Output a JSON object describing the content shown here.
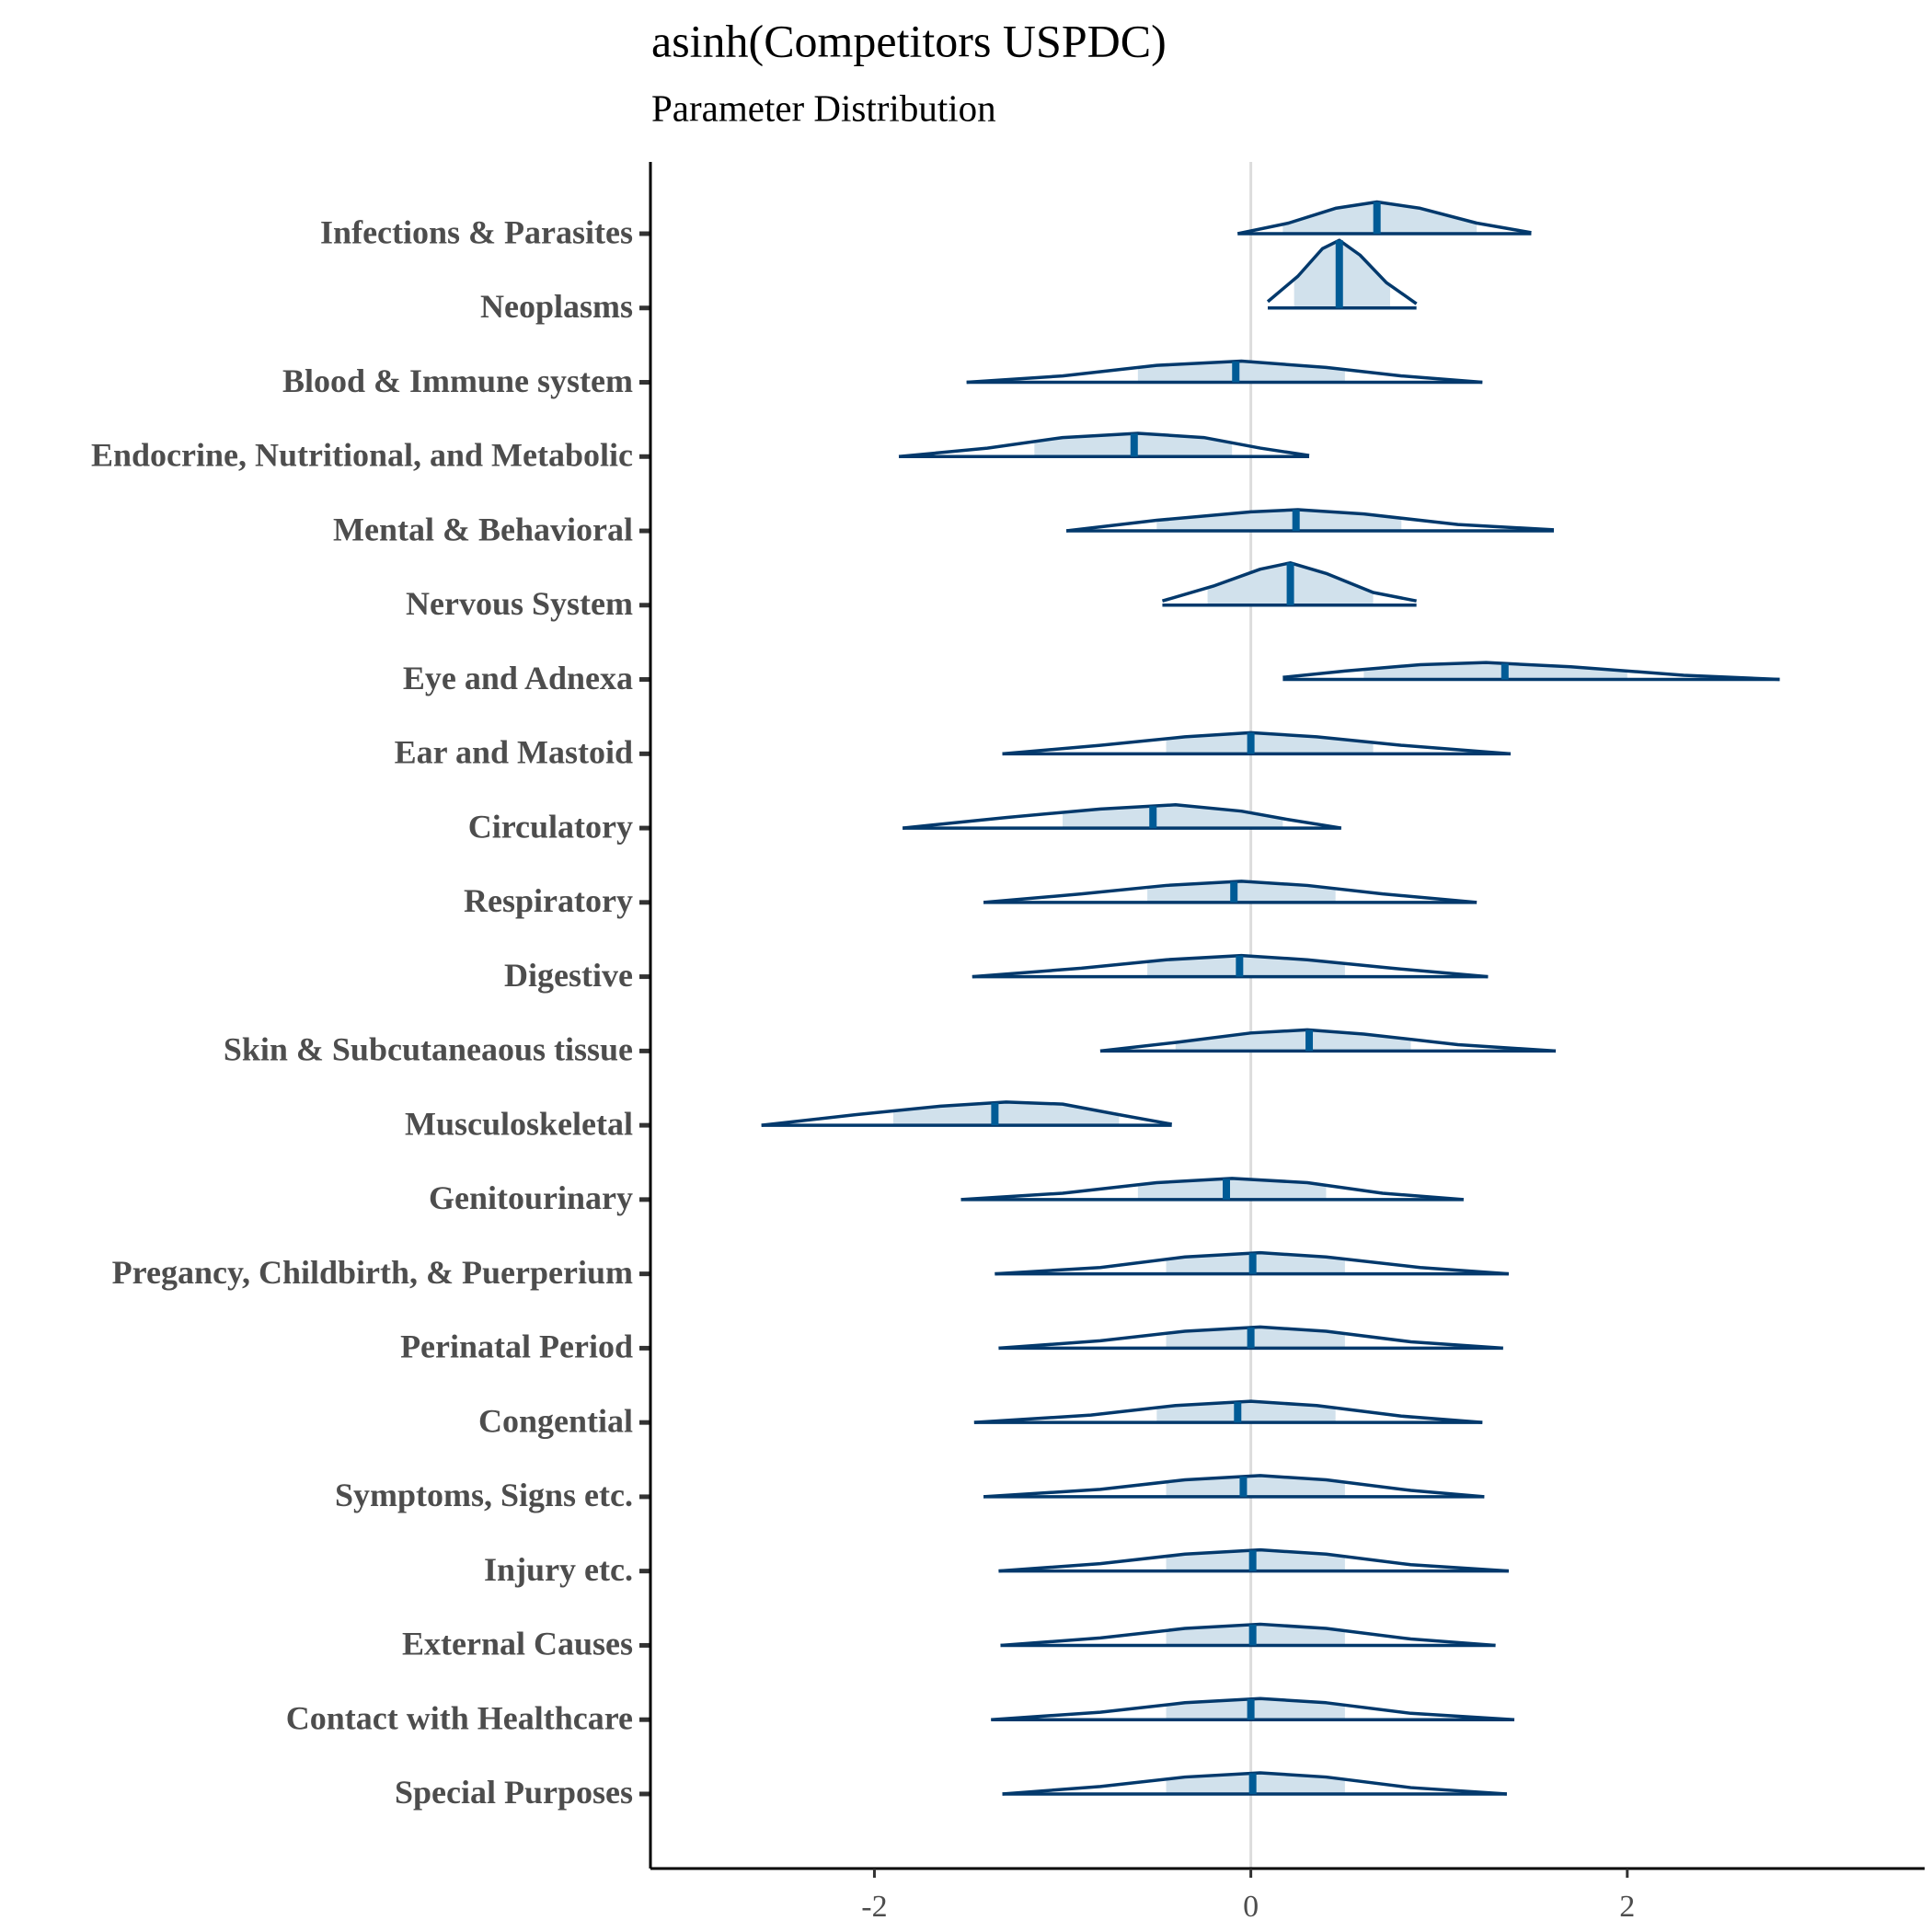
{
  "chart_data": {
    "type": "ridgeline",
    "title": "asinh(Competitors USPDC)",
    "subtitle": "Parameter Distribution",
    "xlim": [
      -3.19,
      3.58
    ],
    "xticks": [
      -2,
      0,
      2
    ],
    "reference_line": 0,
    "outline_color": "#03396c",
    "fill_color": "#d1e1ec",
    "median_color": "#005b96",
    "rows": [
      {
        "name": "Infections & Parasites",
        "x": [
          -0.07,
          0.2,
          0.45,
          0.67,
          0.9,
          1.2,
          1.49
        ],
        "density": [
          0,
          0.5,
          1.2,
          1.5,
          1.2,
          0.5,
          0.05
        ],
        "median": 0.67,
        "interval": [
          0.17,
          1.2
        ]
      },
      {
        "name": "Neoplasms",
        "x": [
          0.09,
          0.25,
          0.38,
          0.47,
          0.58,
          0.72,
          0.88
        ],
        "density": [
          0.3,
          1.5,
          2.8,
          3.2,
          2.5,
          1.2,
          0.2
        ],
        "median": 0.47,
        "interval": [
          0.23,
          0.74
        ]
      },
      {
        "name": "Blood & Immune system",
        "x": [
          -1.51,
          -1.0,
          -0.5,
          -0.05,
          0.4,
          0.8,
          1.23
        ],
        "density": [
          0,
          0.3,
          0.8,
          1.0,
          0.7,
          0.3,
          0
        ],
        "median": -0.08,
        "interval": [
          -0.6,
          0.5
        ]
      },
      {
        "name": "Endocrine, Nutritional, and Metabolic",
        "x": [
          -1.87,
          -1.4,
          -1.0,
          -0.6,
          -0.25,
          0.05,
          0.31
        ],
        "density": [
          0,
          0.4,
          0.9,
          1.1,
          0.9,
          0.4,
          0.05
        ],
        "median": -0.62,
        "interval": [
          -1.15,
          -0.1
        ]
      },
      {
        "name": "Mental & Behavioral",
        "x": [
          -0.98,
          -0.5,
          0,
          0.25,
          0.6,
          1.1,
          1.61
        ],
        "density": [
          0,
          0.5,
          0.9,
          1.0,
          0.8,
          0.3,
          0.05
        ],
        "median": 0.24,
        "interval": [
          -0.5,
          0.8
        ]
      },
      {
        "name": "Nervous System",
        "x": [
          -0.47,
          -0.2,
          0.05,
          0.21,
          0.4,
          0.65,
          0.88
        ],
        "density": [
          0.2,
          0.9,
          1.7,
          2.0,
          1.5,
          0.6,
          0.2
        ],
        "median": 0.21,
        "interval": [
          -0.23,
          0.65
        ]
      },
      {
        "name": "Eye and Adnexa",
        "x": [
          0.17,
          0.5,
          0.9,
          1.25,
          1.7,
          2.3,
          2.81
        ],
        "density": [
          0.1,
          0.4,
          0.7,
          0.8,
          0.6,
          0.2,
          0
        ],
        "median": 1.35,
        "interval": [
          0.6,
          2.0
        ]
      },
      {
        "name": "Ear and Mastoid",
        "x": [
          -1.32,
          -0.8,
          -0.35,
          0.0,
          0.35,
          0.8,
          1.38
        ],
        "density": [
          0,
          0.4,
          0.8,
          1.0,
          0.8,
          0.4,
          0
        ],
        "median": 0.0,
        "interval": [
          -0.45,
          0.65
        ]
      },
      {
        "name": "Circulatory",
        "x": [
          -1.85,
          -1.3,
          -0.8,
          -0.4,
          -0.05,
          0.2,
          0.48
        ],
        "density": [
          0,
          0.5,
          0.9,
          1.1,
          0.8,
          0.4,
          0
        ],
        "median": -0.52,
        "interval": [
          -1.0,
          0.17
        ]
      },
      {
        "name": "Respiratory",
        "x": [
          -1.42,
          -0.9,
          -0.45,
          -0.05,
          0.3,
          0.7,
          1.2
        ],
        "density": [
          0,
          0.4,
          0.8,
          1.0,
          0.8,
          0.4,
          0
        ],
        "median": -0.09,
        "interval": [
          -0.55,
          0.45
        ]
      },
      {
        "name": "Digestive",
        "x": [
          -1.48,
          -0.9,
          -0.45,
          -0.05,
          0.3,
          0.75,
          1.26
        ],
        "density": [
          0,
          0.4,
          0.8,
          1.0,
          0.8,
          0.4,
          0
        ],
        "median": -0.06,
        "interval": [
          -0.55,
          0.5
        ]
      },
      {
        "name": "Skin & Subcutaneaous tissue",
        "x": [
          -0.8,
          -0.4,
          0,
          0.3,
          0.6,
          1.1,
          1.62
        ],
        "density": [
          0,
          0.4,
          0.85,
          1.0,
          0.8,
          0.3,
          0
        ],
        "median": 0.31,
        "interval": [
          -0.4,
          0.85
        ]
      },
      {
        "name": "Musculoskeletal",
        "x": [
          -2.6,
          -2.1,
          -1.65,
          -1.3,
          -1.0,
          -0.7,
          -0.42
        ],
        "density": [
          0,
          0.5,
          0.9,
          1.1,
          1.0,
          0.5,
          0.05
        ],
        "median": -1.36,
        "interval": [
          -1.9,
          -0.7
        ]
      },
      {
        "name": "Genitourinary",
        "x": [
          -1.54,
          -1.0,
          -0.5,
          -0.1,
          0.3,
          0.7,
          1.13
        ],
        "density": [
          0,
          0.3,
          0.8,
          1.0,
          0.8,
          0.3,
          0
        ],
        "median": -0.13,
        "interval": [
          -0.6,
          0.4
        ]
      },
      {
        "name": "Pregancy, Childbirth, & Puerperium",
        "x": [
          -1.36,
          -0.8,
          -0.35,
          0.05,
          0.4,
          0.9,
          1.37
        ],
        "density": [
          0,
          0.3,
          0.8,
          1.0,
          0.8,
          0.3,
          0
        ],
        "median": 0.01,
        "interval": [
          -0.45,
          0.5
        ]
      },
      {
        "name": "Perinatal Period",
        "x": [
          -1.34,
          -0.8,
          -0.35,
          0.05,
          0.4,
          0.85,
          1.34
        ],
        "density": [
          0,
          0.35,
          0.8,
          1.0,
          0.8,
          0.3,
          0
        ],
        "median": 0.0,
        "interval": [
          -0.45,
          0.5
        ]
      },
      {
        "name": "Congential",
        "x": [
          -1.47,
          -0.85,
          -0.4,
          0.0,
          0.35,
          0.8,
          1.23
        ],
        "density": [
          0,
          0.35,
          0.8,
          1.0,
          0.8,
          0.3,
          0
        ],
        "median": -0.07,
        "interval": [
          -0.5,
          0.45
        ]
      },
      {
        "name": "Symptoms, Signs etc.",
        "x": [
          -1.42,
          -0.8,
          -0.35,
          0.05,
          0.4,
          0.85,
          1.24
        ],
        "density": [
          0,
          0.35,
          0.8,
          1.0,
          0.8,
          0.3,
          0
        ],
        "median": -0.04,
        "interval": [
          -0.45,
          0.5
        ]
      },
      {
        "name": "Injury etc.",
        "x": [
          -1.34,
          -0.8,
          -0.35,
          0.05,
          0.4,
          0.85,
          1.37
        ],
        "density": [
          0,
          0.35,
          0.8,
          1.0,
          0.8,
          0.3,
          0
        ],
        "median": 0.01,
        "interval": [
          -0.45,
          0.5
        ]
      },
      {
        "name": "External Causes",
        "x": [
          -1.33,
          -0.8,
          -0.35,
          0.05,
          0.4,
          0.85,
          1.3
        ],
        "density": [
          0,
          0.35,
          0.8,
          1.0,
          0.8,
          0.3,
          0
        ],
        "median": 0.01,
        "interval": [
          -0.45,
          0.5
        ]
      },
      {
        "name": "Contact with Healthcare",
        "x": [
          -1.38,
          -0.8,
          -0.35,
          0.05,
          0.4,
          0.85,
          1.4
        ],
        "density": [
          0,
          0.35,
          0.8,
          1.0,
          0.8,
          0.3,
          0
        ],
        "median": 0.0,
        "interval": [
          -0.45,
          0.5
        ]
      },
      {
        "name": "Special Purposes",
        "x": [
          -1.32,
          -0.8,
          -0.35,
          0.05,
          0.4,
          0.85,
          1.36
        ],
        "density": [
          0,
          0.35,
          0.8,
          1.0,
          0.8,
          0.3,
          0
        ],
        "median": 0.01,
        "interval": [
          -0.45,
          0.5
        ]
      }
    ]
  }
}
